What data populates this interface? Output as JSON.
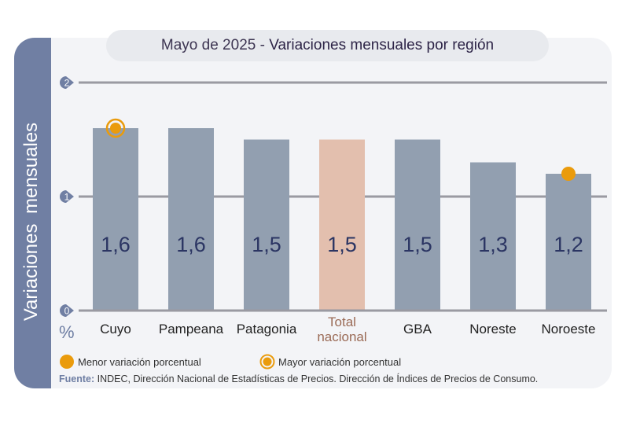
{
  "chart_data": {
    "type": "bar",
    "title_prefix": "Mayo de 2025 - ",
    "title": "Variaciones mensuales por región",
    "ylabel": "Variaciones  mensuales",
    "yunit": "%",
    "ylim": [
      0,
      2
    ],
    "yticks": [
      0,
      1,
      2
    ],
    "grid": true,
    "categories": [
      "Cuyo",
      "Pampeana",
      "Patagonia",
      "Total nacional",
      "GBA",
      "Noreste",
      "Noroeste"
    ],
    "values": [
      1.6,
      1.6,
      1.5,
      1.5,
      1.5,
      1.3,
      1.2
    ],
    "data_labels": [
      "1,6",
      "1,6",
      "1,5",
      "1,5",
      "1,5",
      "1,3",
      "1,2"
    ],
    "highlight_category": "Total nacional",
    "markers": {
      "max": "Cuyo",
      "min": "Noroeste"
    },
    "colors": {
      "bar": "#929fb0",
      "highlight": "#e3bfae",
      "marker": "#ea9b0c",
      "value_text": "#2b3563",
      "highlight_text": "#9a6a55"
    },
    "legend": {
      "min_label": "Menor variación porcentual",
      "max_label": "Mayor variación porcentual",
      "placement": "bottom"
    }
  },
  "source": {
    "label": "Fuente:",
    "text": " INDEC, Dirección Nacional de Estadísticas de Precios. Dirección de Índices de Precios de Consumo."
  }
}
